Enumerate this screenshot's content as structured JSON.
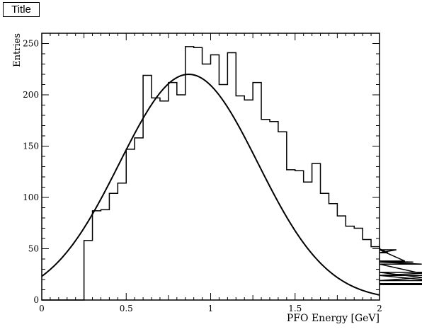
{
  "chart_data": {
    "type": "histogram",
    "title": "Title",
    "xlabel": "PFO Energy [GeV]",
    "ylabel": "Entries",
    "xlim": [
      0,
      2
    ],
    "ylim": [
      0,
      260
    ],
    "x_ticks": [
      0,
      0.5,
      1,
      1.5,
      2
    ],
    "x_tick_labels": [
      "0",
      "0.5",
      "1",
      "1.5",
      "2"
    ],
    "y_ticks": [
      0,
      50,
      100,
      150,
      200,
      250
    ],
    "y_tick_labels": [
      "0",
      "50",
      "100",
      "150",
      "200",
      "250"
    ],
    "grid": false,
    "legend": false,
    "histogram": {
      "bin_width": 0.025,
      "x_start": 0,
      "counts": [
        0,
        0,
        0,
        0,
        0,
        0,
        0,
        0,
        0,
        0,
        0,
        0,
        0,
        0,
        0,
        0,
        0,
        0,
        0,
        0,
        0,
        0,
        0,
        0,
        0,
        0,
        0,
        0,
        0,
        0,
        0,
        0,
        0,
        0,
        0,
        0,
        0,
        0,
        0,
        0,
        0,
        0,
        0,
        0,
        0,
        0,
        0,
        0,
        0,
        0,
        0,
        0,
        0,
        0,
        0,
        0,
        0,
        0,
        0,
        0,
        0,
        0,
        0,
        0,
        0,
        0,
        0,
        0,
        0,
        0,
        0,
        0,
        0,
        0,
        0,
        0
      ]
    },
    "bins": {
      "edges_start": 0.0,
      "width": 0.05,
      "values": [
        0,
        0,
        0,
        0,
        0,
        58,
        87,
        88,
        104,
        114,
        147,
        158,
        219,
        197,
        194,
        212,
        200,
        247,
        246,
        230,
        239,
        210,
        241,
        199,
        195,
        212,
        176,
        174,
        164,
        127,
        126,
        115,
        133,
        104,
        94,
        82,
        72,
        70,
        59,
        52,
        50,
        46,
        49,
        38,
        37,
        35,
        24,
        27,
        19,
        24,
        16,
        15,
        0
      ]
    },
    "fit_curve": {
      "type": "gaussian",
      "amplitude": 220,
      "mean": 0.87,
      "sigma": 0.41,
      "baseline": 0
    }
  }
}
